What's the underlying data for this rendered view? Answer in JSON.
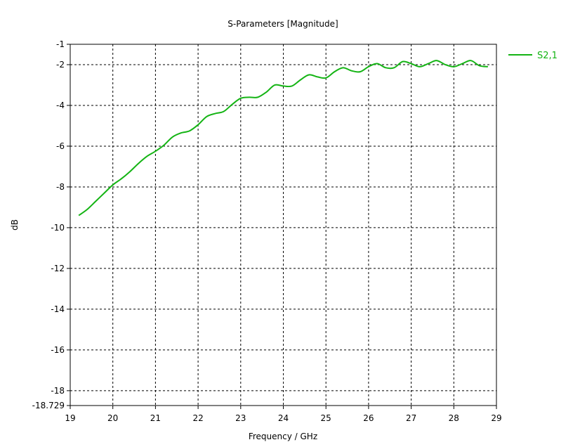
{
  "chart_data": {
    "type": "line",
    "title": "S-Parameters [Magnitude]",
    "xlabel": "Frequency / GHz",
    "ylabel": "dB",
    "xlim": [
      19,
      29
    ],
    "ylim": [
      -18.729,
      -1
    ],
    "xticks": [
      19,
      20,
      21,
      22,
      23,
      24,
      25,
      26,
      27,
      28,
      29
    ],
    "yticks": [
      -1,
      -2,
      -4,
      -6,
      -8,
      -10,
      -12,
      -14,
      -16,
      -18,
      -18.729
    ],
    "ytick_labels": [
      "-1",
      "-2",
      "-4",
      "-6",
      "-8",
      "-10",
      "-12",
      "-14",
      "-16",
      "-18",
      "-18.729"
    ],
    "grid": true,
    "legend_position": "top-right",
    "series": [
      {
        "name": "S2,1",
        "color": "#14b414",
        "x": [
          19.2,
          19.4,
          19.6,
          19.8,
          20.0,
          20.2,
          20.4,
          20.6,
          20.8,
          21.0,
          21.2,
          21.4,
          21.6,
          21.8,
          22.0,
          22.2,
          22.4,
          22.6,
          22.8,
          23.0,
          23.2,
          23.4,
          23.6,
          23.8,
          24.0,
          24.2,
          24.4,
          24.6,
          24.8,
          25.0,
          25.2,
          25.4,
          25.6,
          25.8,
          26.0,
          26.2,
          26.4,
          26.6,
          26.8,
          27.0,
          27.2,
          27.4,
          27.6,
          27.8,
          28.0,
          28.2,
          28.4,
          28.6,
          28.8
        ],
        "y": [
          -9.4,
          -9.1,
          -8.7,
          -8.3,
          -7.9,
          -7.6,
          -7.25,
          -6.85,
          -6.5,
          -6.25,
          -5.95,
          -5.55,
          -5.35,
          -5.25,
          -4.95,
          -4.55,
          -4.4,
          -4.3,
          -3.95,
          -3.65,
          -3.6,
          -3.6,
          -3.35,
          -3.0,
          -3.05,
          -3.05,
          -2.75,
          -2.5,
          -2.6,
          -2.65,
          -2.35,
          -2.15,
          -2.3,
          -2.35,
          -2.1,
          -1.95,
          -2.15,
          -2.15,
          -1.85,
          -1.95,
          -2.1,
          -1.95,
          -1.8,
          -2.0,
          -2.1,
          -1.95,
          -1.8,
          -2.05,
          -2.1
        ]
      }
    ]
  }
}
